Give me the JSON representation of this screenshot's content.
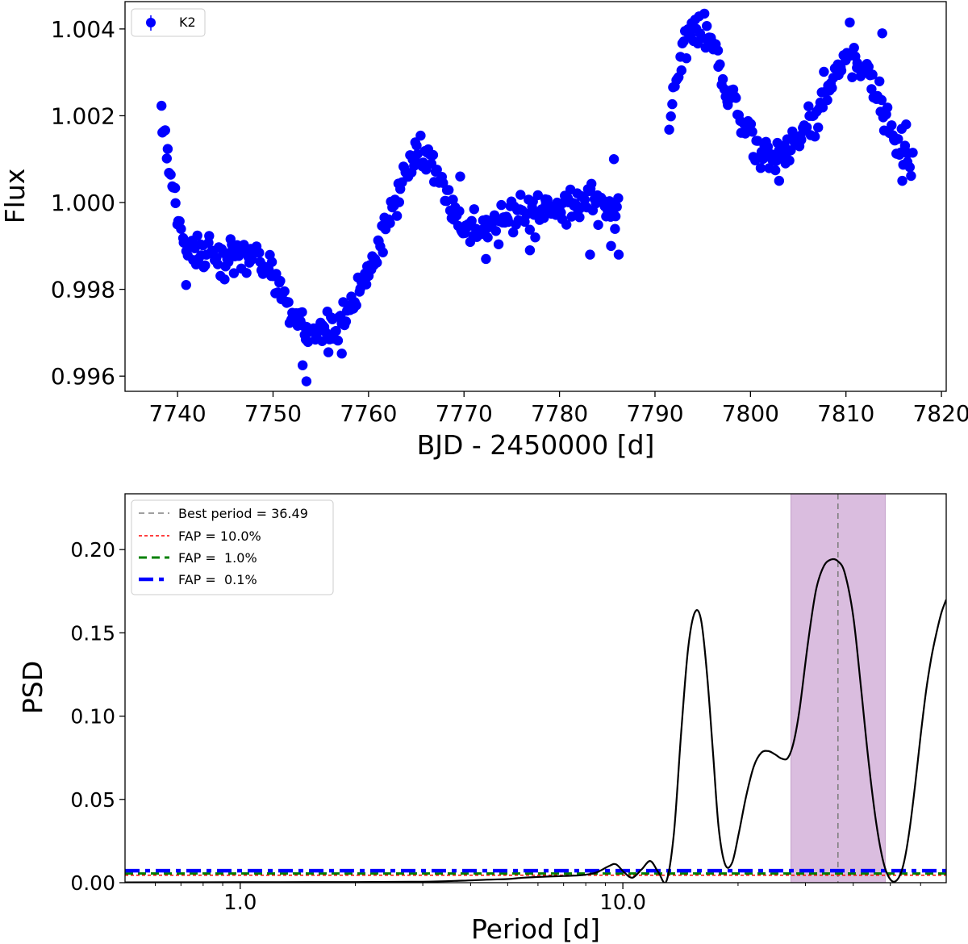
{
  "chart_data": [
    {
      "type": "scatter",
      "xlabel": "BJD - 2450000 [d]",
      "ylabel": "Flux",
      "xlim": [
        7734.5,
        7820.5
      ],
      "ylim": [
        0.99565,
        1.00463
      ],
      "xticks": [
        7740,
        7750,
        7760,
        7770,
        7780,
        7790,
        7800,
        7810,
        7820
      ],
      "yticks": [
        0.996,
        0.998,
        1.0,
        1.002,
        1.004
      ],
      "ytick_labels": [
        "0.996",
        "0.998",
        "1.000",
        "1.002",
        "1.004"
      ],
      "grid": false,
      "legend": {
        "position": "top-left",
        "entries": [
          "K2"
        ]
      },
      "series": [
        {
          "name": "K2",
          "color": "#0000ff",
          "marker": "circle-with-errorbar",
          "segments": [
            {
              "x": [
                7738.3,
                7738.6,
                7739.0,
                7739.4,
                7739.8,
                7740.3,
                7740.8,
                7741.5,
                7742.5,
                7743.5,
                7744.5,
                7745.5,
                7746.5,
                7747.5,
                7748.5,
                7749.5,
                7750.5,
                7751.5,
                7752.5,
                7753.5,
                7754.5,
                7755.5,
                7756.5,
                7757.5,
                7758.5,
                7759.5,
                7760.5,
                7761.5,
                7762.5,
                7763.5,
                7764.5,
                7765.5,
                7766.5,
                7767.5,
                7768.5,
                7769.5,
                7770.5,
                7771.5,
                7772.5,
                7773.5,
                7774.5,
                7775.5,
                7776.5,
                7777.5,
                7778.5,
                7779.5,
                7780.5,
                7781.5,
                7782.5,
                7783.5,
                7784.5,
                7785.5,
                7786.3
              ],
              "y": [
                1.002,
                1.0016,
                1.001,
                1.0004,
                0.9999,
                0.9994,
                0.999,
                0.9988,
                0.9987,
                0.9987,
                0.9988,
                0.9988,
                0.9989,
                0.9988,
                0.9987,
                0.9986,
                0.9982,
                0.9977,
                0.9973,
                0.9971,
                0.9971,
                0.9971,
                0.9972,
                0.9974,
                0.9977,
                0.9981,
                0.9987,
                0.9993,
                0.9999,
                1.0005,
                1.0009,
                1.0011,
                1.001,
                1.0005,
                1.0,
                0.9996,
                0.9994,
                0.9993,
                0.9994,
                0.9995,
                0.9996,
                0.9997,
                0.9998,
                0.9998,
                0.9999,
                0.9999,
                1.0,
                1.0,
                1.0,
                1.0,
                0.9999,
                0.9999,
                0.9998
              ]
            },
            {
              "x": [
                7791.5,
                7792.0,
                7792.5,
                7793.0,
                7793.5,
                7794.0,
                7794.5,
                7795.0,
                7795.5,
                7796.0,
                7796.5,
                7797.0,
                7797.5,
                7798.0,
                7798.5,
                7799.0,
                7799.5,
                7800.0,
                7800.5,
                7801.0,
                7801.5,
                7802.0,
                7802.5,
                7803.0,
                7803.5,
                7804.0,
                7804.5,
                7805.0,
                7805.5,
                7806.0,
                7806.5,
                7807.0,
                7807.5,
                7808.0,
                7808.5,
                7809.0,
                7809.5,
                7810.0,
                7810.5,
                7811.0,
                7811.5,
                7812.0,
                7812.5,
                7813.0,
                7813.5,
                7814.0,
                7814.5,
                7815.0,
                7815.5,
                7816.0,
                7816.5,
                7817.0
              ],
              "y": [
                1.002,
                1.0026,
                1.0032,
                1.0036,
                1.0039,
                1.004,
                1.004,
                1.004,
                1.0039,
                1.0037,
                1.0034,
                1.003,
                1.0027,
                1.0024,
                1.0022,
                1.002,
                1.0018,
                1.0016,
                1.0014,
                1.0013,
                1.0012,
                1.0011,
                1.0011,
                1.0011,
                1.0011,
                1.0012,
                1.0013,
                1.0014,
                1.0016,
                1.0018,
                1.002,
                1.0022,
                1.0024,
                1.0026,
                1.0028,
                1.003,
                1.0032,
                1.0033,
                1.0033,
                1.0033,
                1.0032,
                1.0031,
                1.003,
                1.0028,
                1.0025,
                1.0021,
                1.0017,
                1.0014,
                1.0012,
                1.0011,
                1.001,
                1.001
              ]
            }
          ],
          "outliers": {
            "x": [
              7740.9,
              7753.1,
              7753.5,
              7755.8,
              7757.2,
              7769.6,
              7772.3,
              7776.9,
              7783.2,
              7785.4,
              7785.7,
              7786.2,
              7803.0,
              7810.4,
              7813.8,
              7815.9,
              7816.3
            ],
            "y": [
              0.9981,
              0.99625,
              0.99588,
              0.99655,
              0.99652,
              1.0006,
              0.9987,
              0.9989,
              0.9988,
              0.999,
              1.001,
              0.9988,
              1.0005,
              1.00415,
              1.0039,
              1.0005,
              1.0018
            ]
          }
        }
      ]
    },
    {
      "type": "line",
      "xlabel": "Period [d]",
      "ylabel": "PSD",
      "xscale": "log",
      "xlim": [
        0.5,
        70
      ],
      "ylim": [
        0.0,
        0.2335
      ],
      "xticks": [
        1.0,
        10.0
      ],
      "xtick_labels": [
        "1.0",
        "10.0"
      ],
      "yticks": [
        0.0,
        0.05,
        0.1,
        0.15,
        0.2
      ],
      "ytick_labels": [
        "0.00",
        "0.05",
        "0.10",
        "0.15",
        "0.20"
      ],
      "grid": false,
      "legend": {
        "position": "top-left",
        "entries": [
          "Best period = 36.49",
          "FAP = 10.0%",
          "FAP =  1.0%",
          "FAP =  0.1%"
        ]
      },
      "best_period": 36.49,
      "highlight_band": {
        "x": [
          27.5,
          48.5
        ],
        "color": "#d3b2d9"
      },
      "fap_levels": [
        {
          "label": "FAP = 10.0%",
          "value": 0.0045,
          "color": "#ff0000",
          "style": "thin-dashed"
        },
        {
          "label": "FAP =  1.0%",
          "value": 0.0055,
          "color": "#008000",
          "style": "dashed"
        },
        {
          "label": "FAP =  0.1%",
          "value": 0.0072,
          "color": "#0000ff",
          "style": "dash-dot"
        }
      ],
      "series": [
        {
          "color": "#000000",
          "x": [
            0.5,
            1.0,
            2.0,
            3.0,
            3.8,
            4.4,
            5.0,
            5.5,
            6.2,
            7.0,
            7.8,
            8.5,
            9.2,
            9.6,
            10.1,
            10.6,
            11.2,
            11.8,
            12.4,
            13.0,
            13.6,
            14.2,
            14.8,
            15.4,
            16.0,
            16.6,
            17.2,
            17.8,
            18.5,
            19.3,
            20.1,
            21.0,
            22.0,
            23.0,
            24.0,
            25.0,
            26.0,
            27.0,
            28.0,
            29.0,
            30.5,
            32.0,
            33.5,
            35.0,
            36.49,
            38.0,
            40.0,
            42.0,
            44.0,
            46.0,
            48.0,
            50.0,
            52.0,
            54.0,
            56.0,
            58.0,
            60.0,
            62.0,
            64.0,
            66.0,
            68.0,
            70.0
          ],
          "y": [
            0.0002,
            0.0003,
            0.0004,
            0.0006,
            0.0012,
            0.0018,
            0.0022,
            0.003,
            0.0036,
            0.004,
            0.0045,
            0.006,
            0.01,
            0.011,
            0.006,
            0.003,
            0.008,
            0.013,
            0.006,
            0.001,
            0.03,
            0.09,
            0.14,
            0.162,
            0.158,
            0.125,
            0.078,
            0.033,
            0.011,
            0.012,
            0.03,
            0.052,
            0.07,
            0.078,
            0.079,
            0.077,
            0.0745,
            0.075,
            0.085,
            0.105,
            0.145,
            0.176,
            0.19,
            0.194,
            0.193,
            0.186,
            0.16,
            0.115,
            0.07,
            0.035,
            0.012,
            0.002,
            0.0015,
            0.01,
            0.03,
            0.058,
            0.088,
            0.115,
            0.135,
            0.15,
            0.162,
            0.17
          ]
        }
      ]
    }
  ]
}
